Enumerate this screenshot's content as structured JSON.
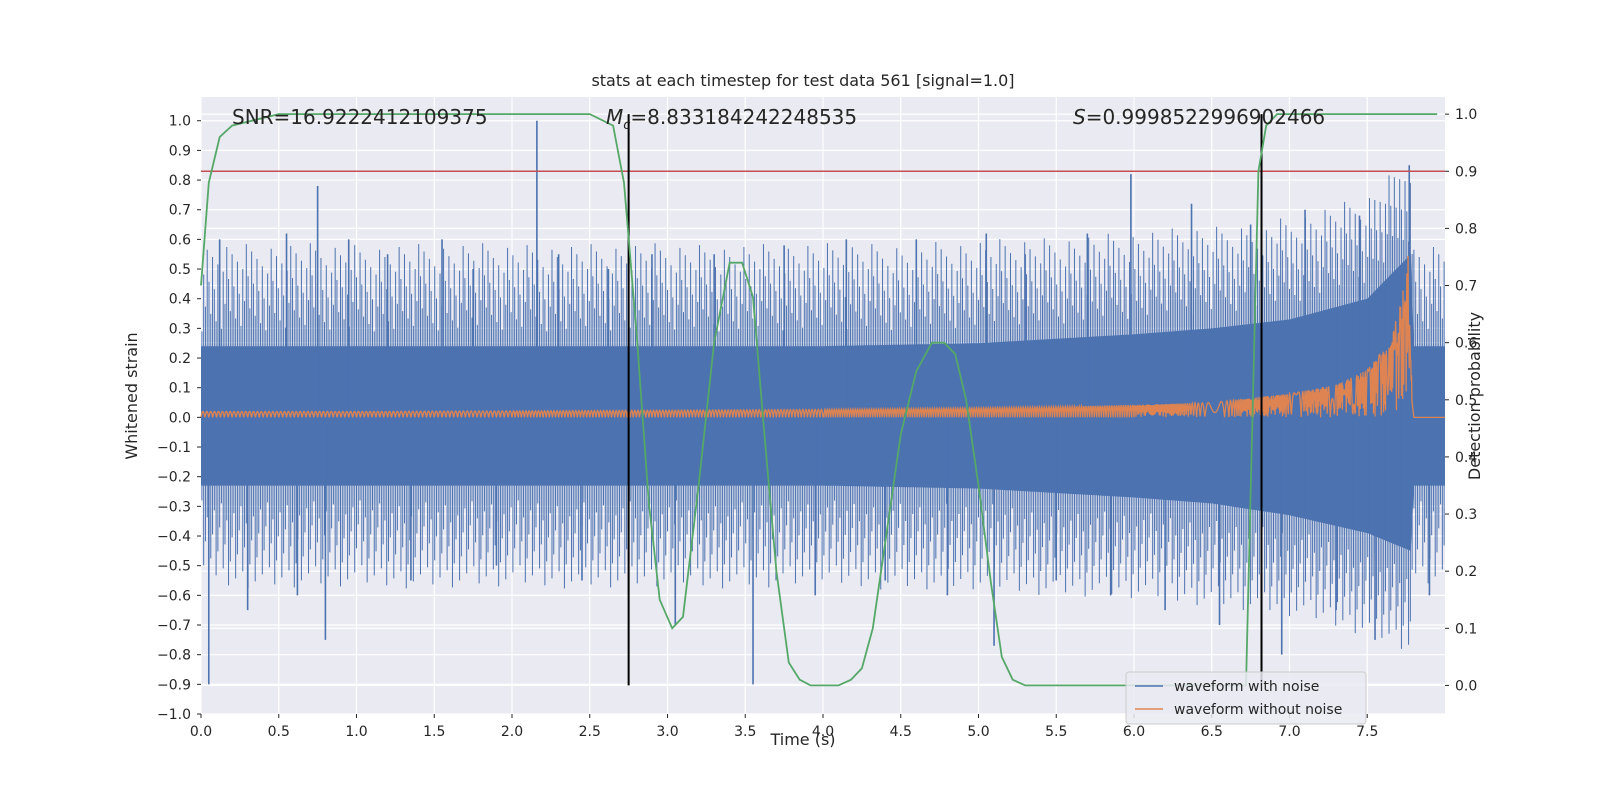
{
  "chart_data": {
    "type": "line",
    "title": "stats at each timestep for test data 561 [signal=1.0]",
    "xlabel": "Time (s)",
    "ylabel": "Whitened strain",
    "ylabel_right": "Detection probability",
    "xlim": [
      0.0,
      8.0
    ],
    "ylim": [
      -1.0,
      1.08
    ],
    "ylim_right": [
      -0.05,
      1.03
    ],
    "x_ticks": [
      "0.0",
      "0.5",
      "1.0",
      "1.5",
      "2.0",
      "2.5",
      "3.0",
      "3.5",
      "4.0",
      "4.5",
      "5.0",
      "5.5",
      "6.0",
      "6.5",
      "7.0",
      "7.5"
    ],
    "x_tick_values": [
      0.0,
      0.5,
      1.0,
      1.5,
      2.0,
      2.5,
      3.0,
      3.5,
      4.0,
      4.5,
      5.0,
      5.5,
      6.0,
      6.5,
      7.0,
      7.5
    ],
    "y_ticks": [
      "1.0",
      "0.9",
      "0.8",
      "0.7",
      "0.6",
      "0.5",
      "0.4",
      "0.3",
      "0.2",
      "0.1",
      "0.0",
      "−0.1",
      "−0.2",
      "−0.3",
      "−0.4",
      "−0.5",
      "−0.6",
      "−0.7",
      "−0.8",
      "−0.9",
      "−1.0"
    ],
    "y_tick_values": [
      1.0,
      0.9,
      0.8,
      0.7,
      0.6,
      0.5,
      0.4,
      0.3,
      0.2,
      0.1,
      0.0,
      -0.1,
      -0.2,
      -0.3,
      -0.4,
      -0.5,
      -0.6,
      -0.7,
      -0.8,
      -0.9,
      -1.0
    ],
    "y2_ticks": [
      "1.0",
      "0.9",
      "0.8",
      "0.7",
      "0.6",
      "0.5",
      "0.4",
      "0.3",
      "0.2",
      "0.1",
      "0.0"
    ],
    "y2_tick_values": [
      1.0,
      0.9,
      0.8,
      0.7,
      0.6,
      0.5,
      0.4,
      0.3,
      0.2,
      0.1,
      0.0
    ],
    "annotations": {
      "snr": "SNR=16.9222412109375",
      "mc_symbol": "M",
      "mc_sub": "c",
      "mc_value": "=8.833184242248535",
      "s_symbol": "S",
      "s_value": "=0.9998522996902466"
    },
    "threshold_line": {
      "y_right": 0.9,
      "color": "#c44e52"
    },
    "vertical_lines": [
      {
        "x": 2.75,
        "ymin_right": 0.0,
        "ymax_right": 1.0
      },
      {
        "x": 6.82,
        "ymin_right": 0.0,
        "ymax_right": 1.0
      }
    ],
    "noise_envelope": {
      "x": [
        0.0,
        1.0,
        2.0,
        3.0,
        4.0,
        5.0,
        6.0,
        6.5,
        7.0,
        7.5,
        7.78,
        7.8,
        8.0
      ],
      "upper": [
        0.24,
        0.24,
        0.24,
        0.24,
        0.24,
        0.25,
        0.28,
        0.3,
        0.33,
        0.4,
        0.55,
        0.24,
        0.24
      ],
      "lower": [
        -0.23,
        -0.23,
        -0.23,
        -0.23,
        -0.23,
        -0.24,
        -0.27,
        -0.29,
        -0.33,
        -0.39,
        -0.45,
        -0.23,
        -0.23
      ]
    },
    "noise_spikes": [
      {
        "x": 0.05,
        "y": -0.9
      },
      {
        "x": 0.12,
        "y": 0.6
      },
      {
        "x": 0.3,
        "y": -0.65
      },
      {
        "x": 0.55,
        "y": 0.62
      },
      {
        "x": 0.62,
        "y": -0.6
      },
      {
        "x": 0.75,
        "y": 0.78
      },
      {
        "x": 0.8,
        "y": -0.75
      },
      {
        "x": 0.95,
        "y": 0.6
      },
      {
        "x": 1.2,
        "y": 0.55
      },
      {
        "x": 1.35,
        "y": -0.55
      },
      {
        "x": 1.55,
        "y": 0.6
      },
      {
        "x": 1.75,
        "y": 0.5
      },
      {
        "x": 1.9,
        "y": -0.5
      },
      {
        "x": 2.16,
        "y": 1.0
      },
      {
        "x": 2.3,
        "y": 0.55
      },
      {
        "x": 2.45,
        "y": -0.55
      },
      {
        "x": 2.62,
        "y": 0.5
      },
      {
        "x": 2.75,
        "y": -0.6
      },
      {
        "x": 2.9,
        "y": 0.55
      },
      {
        "x": 3.05,
        "y": -0.7
      },
      {
        "x": 3.3,
        "y": 0.55
      },
      {
        "x": 3.55,
        "y": -0.9
      },
      {
        "x": 3.75,
        "y": 0.58
      },
      {
        "x": 3.95,
        "y": -0.6
      },
      {
        "x": 4.15,
        "y": 0.6
      },
      {
        "x": 4.4,
        "y": -0.55
      },
      {
        "x": 4.6,
        "y": 0.6
      },
      {
        "x": 4.8,
        "y": -0.6
      },
      {
        "x": 5.05,
        "y": 0.62
      },
      {
        "x": 5.1,
        "y": -0.77
      },
      {
        "x": 5.3,
        "y": 0.55
      },
      {
        "x": 5.5,
        "y": -0.55
      },
      {
        "x": 5.7,
        "y": 0.62
      },
      {
        "x": 5.85,
        "y": -0.6
      },
      {
        "x": 5.98,
        "y": 0.82
      },
      {
        "x": 6.2,
        "y": -0.65
      },
      {
        "x": 6.37,
        "y": 0.72
      },
      {
        "x": 6.55,
        "y": -0.7
      },
      {
        "x": 6.75,
        "y": 0.65
      },
      {
        "x": 6.95,
        "y": -0.8
      },
      {
        "x": 7.1,
        "y": 0.7
      },
      {
        "x": 7.3,
        "y": -0.65
      },
      {
        "x": 7.45,
        "y": 0.68
      },
      {
        "x": 7.55,
        "y": -0.75
      },
      {
        "x": 7.77,
        "y": 0.85
      },
      {
        "x": 7.9,
        "y": -0.6
      }
    ],
    "signal_envelope": {
      "x": [
        0.0,
        1.0,
        2.0,
        3.0,
        4.0,
        5.0,
        5.5,
        6.0,
        6.5,
        7.0,
        7.3,
        7.5,
        7.65,
        7.72,
        7.76,
        7.78,
        7.8,
        8.0
      ],
      "upper": [
        0.02,
        0.02,
        0.022,
        0.024,
        0.027,
        0.032,
        0.036,
        0.042,
        0.05,
        0.08,
        0.11,
        0.16,
        0.26,
        0.4,
        0.58,
        0.3,
        0.0,
        0.0
      ],
      "lower": [
        -0.02,
        -0.02,
        -0.022,
        -0.024,
        -0.027,
        -0.032,
        -0.036,
        -0.042,
        -0.05,
        -0.08,
        -0.11,
        -0.16,
        -0.24,
        -0.34,
        -0.43,
        -0.2,
        0.0,
        0.0
      ]
    },
    "signal_chirp_cycles": [
      {
        "x0": 0.0,
        "x1": 2.0,
        "period": 0.05
      },
      {
        "x0": 2.0,
        "x1": 4.0,
        "period": 0.04
      },
      {
        "x0": 4.0,
        "x1": 6.0,
        "period": 0.03
      }
    ],
    "detection_probability": {
      "x": [
        0.0,
        0.05,
        0.12,
        0.2,
        0.5,
        1.0,
        1.5,
        2.0,
        2.5,
        2.65,
        2.72,
        2.8,
        2.88,
        2.95,
        3.03,
        3.1,
        3.2,
        3.3,
        3.4,
        3.48,
        3.55,
        3.62,
        3.7,
        3.78,
        3.85,
        3.92,
        4.0,
        4.1,
        4.18,
        4.25,
        4.32,
        4.4,
        4.5,
        4.6,
        4.7,
        4.78,
        4.85,
        4.92,
        5.0,
        5.08,
        5.15,
        5.22,
        5.3,
        5.5,
        6.0,
        6.5,
        6.72,
        6.8,
        6.85,
        6.92,
        7.0,
        7.5,
        7.95
      ],
      "y": [
        0.7,
        0.88,
        0.96,
        0.98,
        1.0,
        1.0,
        1.0,
        1.0,
        1.0,
        0.98,
        0.88,
        0.62,
        0.32,
        0.15,
        0.1,
        0.12,
        0.35,
        0.6,
        0.74,
        0.74,
        0.68,
        0.45,
        0.2,
        0.04,
        0.01,
        0.0,
        0.0,
        0.0,
        0.01,
        0.03,
        0.1,
        0.25,
        0.44,
        0.55,
        0.6,
        0.6,
        0.58,
        0.5,
        0.35,
        0.18,
        0.05,
        0.01,
        0.0,
        0.0,
        0.0,
        0.0,
        0.0,
        0.9,
        0.98,
        1.0,
        1.0,
        1.0,
        1.0
      ]
    },
    "series": [
      {
        "name": "waveform with noise",
        "color": "#4c72b0"
      },
      {
        "name": "waveform without noise",
        "color": "#dd8452"
      },
      {
        "name": "detection probability",
        "color": "#55a868"
      }
    ],
    "legend": {
      "position": "lower-right",
      "entries": [
        "waveform with noise",
        "waveform without noise"
      ]
    }
  }
}
